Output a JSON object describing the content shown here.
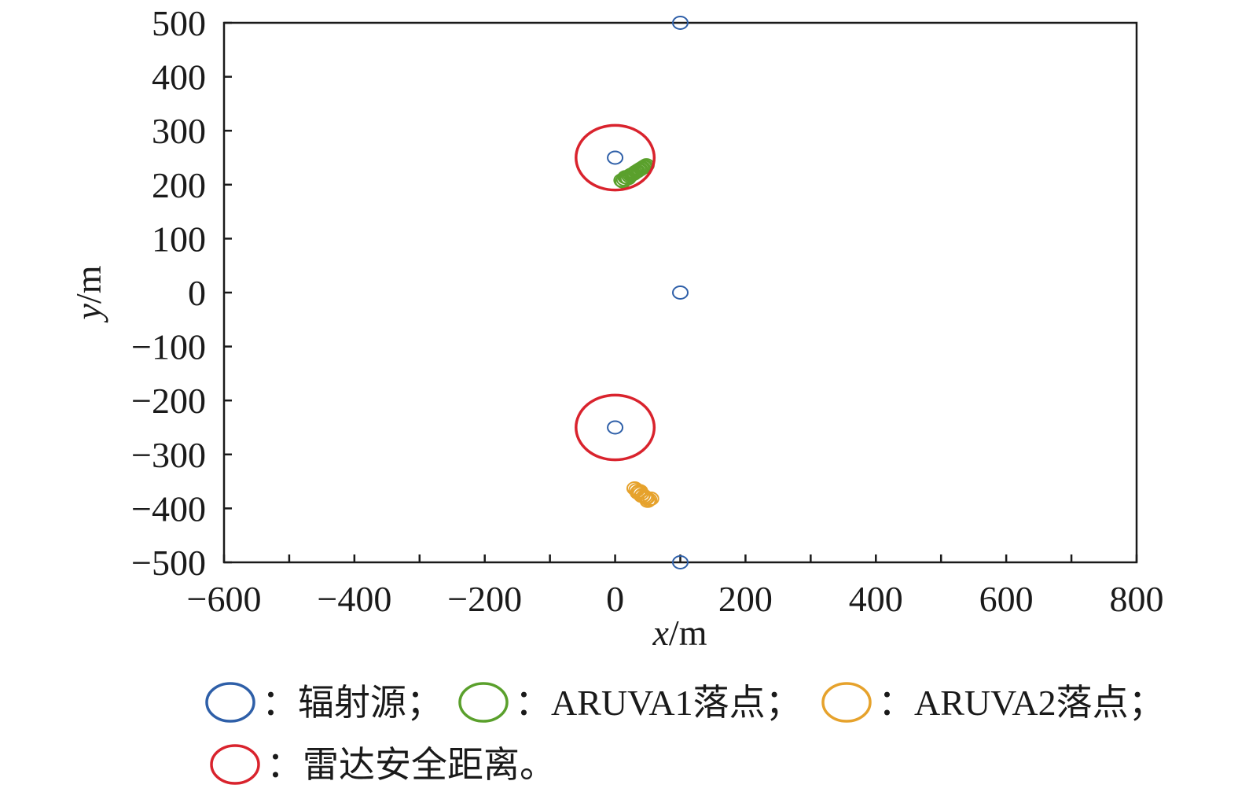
{
  "chart_data": {
    "type": "scatter",
    "xlabel": {
      "var": "x",
      "unit": "/m"
    },
    "ylabel": {
      "var": "y",
      "unit": "/m"
    },
    "xlim": [
      -600,
      800
    ],
    "ylim": [
      -500,
      500
    ],
    "x_ticks": [
      -600,
      -400,
      -200,
      0,
      200,
      400,
      600,
      800
    ],
    "y_ticks": [
      500,
      400,
      300,
      200,
      100,
      0,
      -100,
      -200,
      -300,
      -400,
      -500
    ],
    "x_tick_labels": [
      "−600",
      "−400",
      "−200",
      "0",
      "200",
      "400",
      "600",
      "800"
    ],
    "y_tick_labels": [
      "500",
      "400",
      "300",
      "200",
      "100",
      "0",
      "−100",
      "−200",
      "−300",
      "−400",
      "−500"
    ],
    "grid": false,
    "legend_position": "bottom",
    "series": [
      {
        "key": "radiation",
        "name": "：辐射源；",
        "color": "#2e5fa8",
        "marker": "hollow-circle",
        "points": [
          [
            100,
            500
          ],
          [
            0,
            250
          ],
          [
            100,
            0
          ],
          [
            0,
            -250
          ],
          [
            100,
            -500
          ]
        ]
      },
      {
        "key": "aruva1",
        "name": "：ARUVA1落点；",
        "color": "#5aa02c",
        "marker": "hollow-circle",
        "points": [
          [
            10,
            208
          ],
          [
            14,
            210
          ],
          [
            18,
            213
          ],
          [
            22,
            216
          ],
          [
            26,
            219
          ],
          [
            30,
            222
          ],
          [
            34,
            225
          ],
          [
            38,
            228
          ],
          [
            42,
            231
          ],
          [
            46,
            234
          ],
          [
            12,
            206
          ],
          [
            20,
            212
          ],
          [
            28,
            220
          ],
          [
            36,
            227
          ],
          [
            44,
            233
          ],
          [
            16,
            214
          ],
          [
            24,
            218
          ],
          [
            32,
            224
          ],
          [
            40,
            230
          ],
          [
            48,
            236
          ]
        ]
      },
      {
        "key": "aruva2",
        "name": "：ARUVA2落点；",
        "color": "#e6a22c",
        "marker": "hollow-circle",
        "points": [
          [
            30,
            -363
          ],
          [
            33,
            -366
          ],
          [
            36,
            -369
          ],
          [
            39,
            -372
          ],
          [
            42,
            -375
          ],
          [
            45,
            -378
          ],
          [
            48,
            -381
          ],
          [
            52,
            -384
          ],
          [
            55,
            -382
          ],
          [
            35,
            -371
          ],
          [
            41,
            -377
          ],
          [
            47,
            -380
          ],
          [
            50,
            -386
          ],
          [
            38,
            -368
          ]
        ]
      },
      {
        "key": "safety",
        "name": "：雷达安全距离。",
        "color": "#d9232d",
        "marker": "large-circle",
        "radius": 60,
        "points": [
          [
            0,
            250
          ],
          [
            0,
            -250
          ]
        ]
      }
    ]
  }
}
